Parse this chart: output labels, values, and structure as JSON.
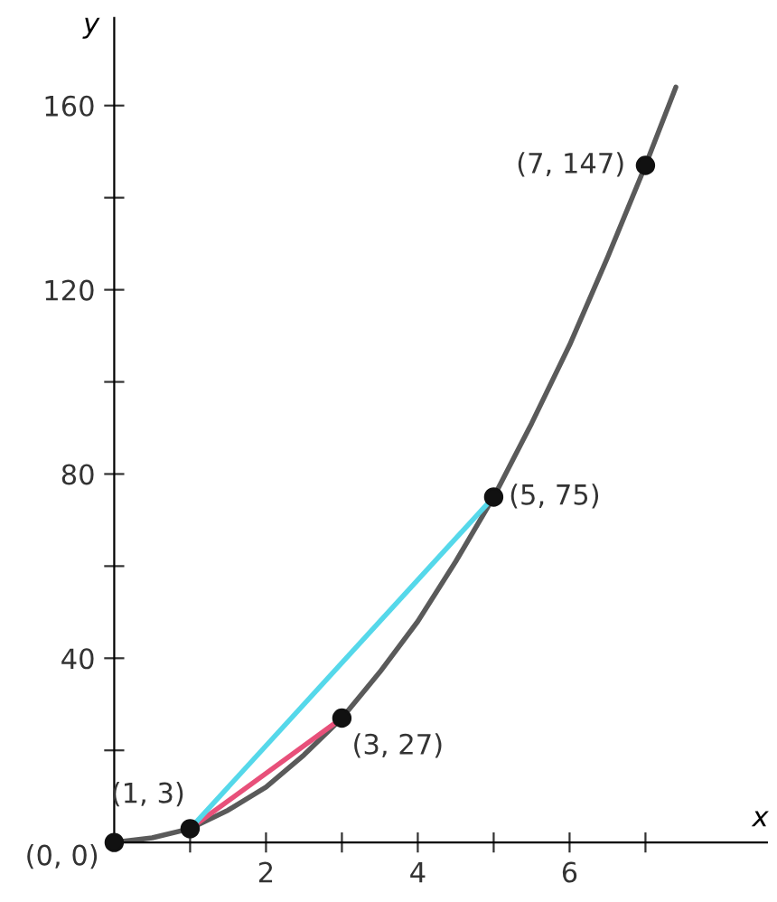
{
  "chart_data": {
    "type": "line",
    "xlabel": "x",
    "ylabel": "y",
    "series": [
      {
        "color": "#5a5a5a",
        "x": [
          0,
          0.5,
          1,
          1.5,
          2,
          2.5,
          3,
          3.5,
          4,
          4.5,
          5,
          5.5,
          6,
          6.5,
          7,
          7.4
        ],
        "values": [
          0,
          1,
          3,
          7,
          12,
          19,
          27,
          37,
          48,
          61,
          75,
          91,
          108,
          127,
          147,
          164
        ]
      },
      {
        "color": "#e8507a",
        "x": [
          1,
          3
        ],
        "values": [
          3,
          27
        ]
      },
      {
        "color": "#55d8ea",
        "x": [
          1,
          5
        ],
        "values": [
          3,
          75
        ]
      },
      {
        "type": "scatter",
        "color": "#111111",
        "marker": "circle",
        "x": [
          0,
          1,
          3,
          5,
          7
        ],
        "values": [
          0,
          3,
          27,
          75,
          147
        ]
      }
    ],
    "annotations": [
      {
        "text": "(0, 0)",
        "x": 0,
        "y": 0
      },
      {
        "text": "(1, 3)",
        "x": 1,
        "y": 3
      },
      {
        "text": "(3, 27)",
        "x": 3,
        "y": 27
      },
      {
        "text": "(5, 75)",
        "x": 5,
        "y": 75
      },
      {
        "text": "(7, 147)",
        "x": 7,
        "y": 147
      }
    ],
    "xlim": [
      0,
      8.6
    ],
    "ylim": [
      0,
      179
    ],
    "xticks": [
      {
        "value": 1,
        "label": null
      },
      2,
      {
        "value": 3,
        "label": null
      },
      4,
      {
        "value": 5,
        "label": null
      },
      6,
      {
        "value": 7,
        "label": null
      }
    ],
    "yticks": [
      {
        "value": 20,
        "label": null
      },
      40,
      {
        "value": 60,
        "label": null
      },
      80,
      {
        "value": 100,
        "label": null
      },
      120,
      {
        "value": 140,
        "label": null
      },
      160
    ],
    "grid": false
  }
}
